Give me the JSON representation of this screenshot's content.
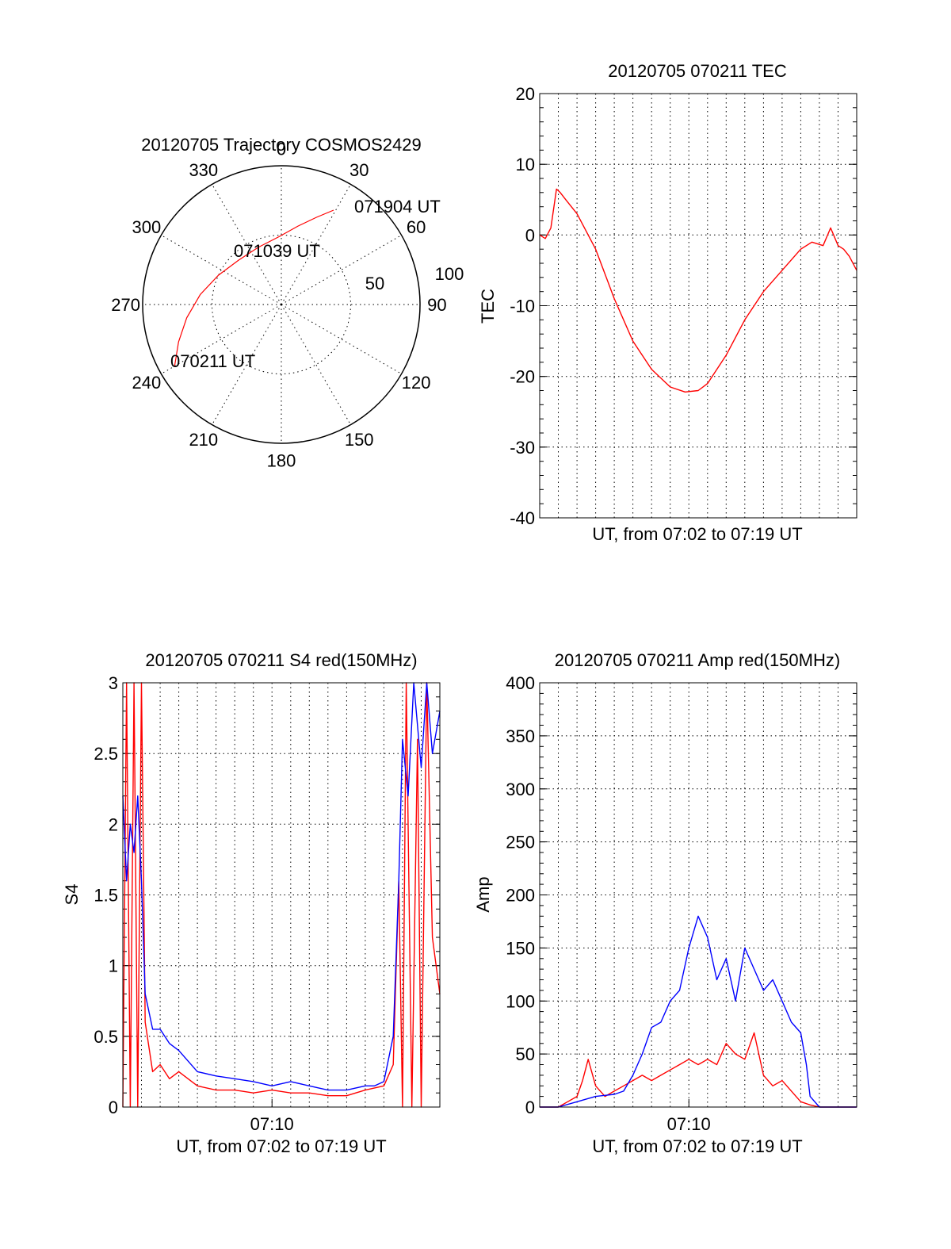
{
  "chart_data": [
    {
      "id": "polar",
      "type": "scatter",
      "title": "20120705 Trajectory COSMOS2429",
      "azimuth_labels": [
        "0",
        "30",
        "60",
        "90",
        "120",
        "150",
        "180",
        "210",
        "240",
        "270",
        "300",
        "330"
      ],
      "radial_labels": [
        "50",
        "100"
      ],
      "annotations": [
        {
          "text": "071904 UT",
          "az": 30,
          "zenith": 70
        },
        {
          "text": "071039 UT",
          "az": 335,
          "zenith": 25
        },
        {
          "text": "070211 UT",
          "az": 240,
          "zenith": 80
        }
      ],
      "series": [
        {
          "color": "#ff0000",
          "points": [
            [
              240,
              80
            ],
            [
              250,
              71
            ],
            [
              262,
              62
            ],
            [
              277,
              53
            ],
            [
              295,
              45
            ],
            [
              316,
              40
            ],
            [
              338,
              40
            ],
            [
              358,
              44
            ],
            [
              12,
              52
            ],
            [
              22,
              61
            ],
            [
              29,
              70
            ]
          ]
        }
      ]
    },
    {
      "id": "tec",
      "type": "line",
      "title": "20120705 070211 TEC",
      "xlabel": "UT, from 07:02 to 07:19 UT",
      "ylabel": "TEC",
      "xlim": [
        0,
        17
      ],
      "ylim": [
        -40,
        20
      ],
      "yticks": [
        "-40",
        "-30",
        "-20",
        "-10",
        "0",
        "10",
        "20"
      ],
      "series": [
        {
          "color": "#ff0000",
          "x": [
            0,
            0.3,
            0.6,
            0.9,
            1.1,
            1.4,
            1.7,
            2.0,
            3,
            4,
            5,
            6,
            7,
            7.8,
            8.5,
            9,
            10,
            11,
            12,
            13,
            14,
            14.6,
            15.2,
            15.6,
            16,
            16.3,
            16.6,
            17
          ],
          "y": [
            0,
            -0.5,
            1,
            6.5,
            6,
            5,
            4,
            3,
            -2,
            -9,
            -15,
            -19,
            -21.5,
            -22.2,
            -22,
            -21,
            -17,
            -12,
            -8,
            -5,
            -2,
            -1,
            -1.5,
            1,
            -1.5,
            -2,
            -3,
            -5
          ]
        }
      ]
    },
    {
      "id": "s4",
      "type": "line",
      "title": "20120705 070211 S4 red(150MHz)",
      "xlabel": "UT, from 07:02 to 07:19 UT",
      "ylabel": "S4",
      "xtick_label": "07:10",
      "xtick_value": 8,
      "xlim": [
        0,
        17
      ],
      "ylim": [
        0,
        3
      ],
      "yticks": [
        "0",
        "0.5",
        "1",
        "1.5",
        "2",
        "2.5",
        "3"
      ],
      "series": [
        {
          "color": "#ff0000",
          "x": [
            0,
            0.2,
            0.4,
            0.6,
            0.8,
            1.0,
            1.2,
            1.6,
            2,
            2.5,
            3,
            4,
            5,
            6,
            7,
            8,
            9,
            10,
            11,
            12,
            13,
            14,
            14.5,
            14.8,
            15,
            15.2,
            15.5,
            15.8,
            16,
            16.3,
            16.6,
            17
          ],
          "y": [
            0,
            3,
            0,
            3,
            0,
            3,
            0.6,
            0.25,
            0.3,
            0.2,
            0.25,
            0.15,
            0.12,
            0.12,
            0.1,
            0.12,
            0.1,
            0.1,
            0.08,
            0.08,
            0.12,
            0.15,
            0.3,
            1.6,
            0,
            3,
            0,
            2.6,
            0,
            3,
            1.2,
            0.8
          ]
        },
        {
          "color": "#0000ff",
          "x": [
            0,
            0.2,
            0.4,
            0.6,
            0.8,
            1.0,
            1.2,
            1.6,
            2,
            2.5,
            3,
            4,
            5,
            6,
            7,
            8,
            9,
            10,
            11,
            12,
            13,
            13.5,
            14,
            14.5,
            14.8,
            15,
            15.3,
            15.6,
            16,
            16.3,
            16.6,
            17
          ],
          "y": [
            2.2,
            1.6,
            2.0,
            1.8,
            2.2,
            1.6,
            0.8,
            0.55,
            0.55,
            0.45,
            0.4,
            0.25,
            0.22,
            0.2,
            0.18,
            0.15,
            0.18,
            0.15,
            0.12,
            0.12,
            0.15,
            0.15,
            0.18,
            0.5,
            1.6,
            2.6,
            2.2,
            3,
            2.4,
            3,
            2.5,
            2.8
          ]
        }
      ]
    },
    {
      "id": "amp",
      "type": "line",
      "title": "20120705 070211 Amp red(150MHz)",
      "xlabel": "UT, from 07:02 to 07:19 UT",
      "ylabel": "Amp",
      "xtick_label": "07:10",
      "xtick_value": 8,
      "xlim": [
        0,
        17
      ],
      "ylim": [
        0,
        400
      ],
      "yticks": [
        "0",
        "50",
        "100",
        "150",
        "200",
        "250",
        "300",
        "350",
        "400"
      ],
      "series": [
        {
          "color": "#ff0000",
          "x": [
            0,
            1,
            1.5,
            2,
            2.3,
            2.6,
            3,
            3.5,
            4,
            4.5,
            5,
            5.5,
            6,
            6.5,
            7,
            7.5,
            8,
            8.5,
            9,
            9.5,
            10,
            10.5,
            11,
            11.5,
            12,
            12.5,
            13,
            13.5,
            14,
            14.5,
            15,
            15.5,
            17
          ],
          "y": [
            0,
            0,
            5,
            10,
            25,
            45,
            20,
            10,
            15,
            20,
            25,
            30,
            25,
            30,
            35,
            40,
            45,
            40,
            45,
            40,
            60,
            50,
            45,
            70,
            30,
            20,
            25,
            15,
            5,
            2,
            0,
            0,
            0
          ]
        },
        {
          "color": "#0000ff",
          "x": [
            0,
            1,
            2,
            3,
            4,
            4.5,
            5,
            5.5,
            6,
            6.5,
            7,
            7.5,
            8,
            8.5,
            9,
            9.5,
            10,
            10.5,
            11,
            11.5,
            12,
            12.5,
            13,
            13.5,
            14,
            14.3,
            14.5,
            15,
            17
          ],
          "y": [
            0,
            0,
            5,
            10,
            12,
            15,
            30,
            50,
            75,
            80,
            100,
            110,
            150,
            180,
            160,
            120,
            140,
            100,
            150,
            130,
            110,
            120,
            100,
            80,
            70,
            40,
            10,
            0,
            0
          ]
        }
      ]
    }
  ]
}
